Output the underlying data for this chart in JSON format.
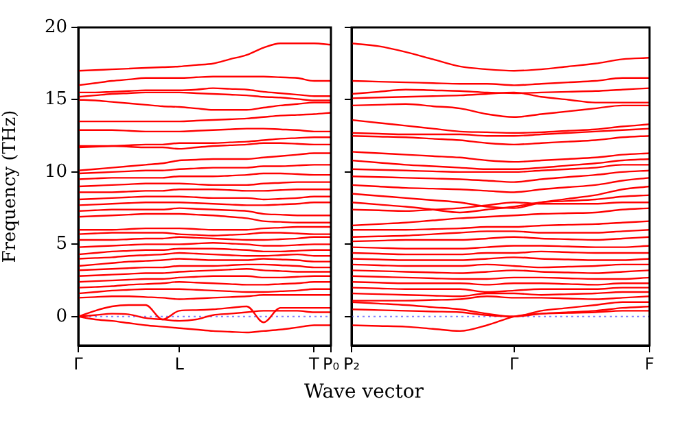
{
  "chart_data": [
    {
      "type": "line",
      "ylabel": "Frequency (THz)",
      "xlabel": "Wave vector",
      "marker": "none",
      "ylim": [
        -2,
        20
      ],
      "yticks": [
        0,
        5,
        10,
        15,
        20
      ],
      "categories": [
        "Γ",
        null,
        null,
        null,
        null,
        null,
        "L",
        null,
        null,
        null,
        null,
        null,
        null,
        null,
        "T",
        "P₀"
      ],
      "ref_lines": [
        {
          "axis": "y",
          "value": 0,
          "color": "#8080ff",
          "line_style": "dotted"
        }
      ],
      "series": [
        {
          "color": "#ff0000",
          "values": [
            0,
            -0.2,
            -0.3,
            -0.45,
            -0.6,
            -0.7,
            -0.8,
            -0.9,
            -1.0,
            -1.05,
            -1.1,
            -1.0,
            -0.9,
            -0.75,
            -0.6,
            -0.6
          ]
        },
        {
          "color": "#ff0000",
          "values": [
            0,
            0.1,
            0.2,
            0.15,
            -0.1,
            -0.2,
            -0.3,
            -0.2,
            0.1,
            0.2,
            0.3,
            0.4,
            0.4,
            0.4,
            0.3,
            0.3
          ]
        },
        {
          "color": "#ff0000",
          "values": [
            0,
            0.4,
            0.7,
            0.8,
            0.8,
            -0.2,
            0.4,
            0.45,
            0.5,
            0.6,
            0.7,
            -0.4,
            0.6,
            0.6,
            0.6,
            0.6
          ]
        },
        {
          "color": "#ff0000",
          "values": [
            1.3,
            1.35,
            1.4,
            1.4,
            1.35,
            1.3,
            1.2,
            1.25,
            1.3,
            1.35,
            1.4,
            1.5,
            1.5,
            1.5,
            1.5,
            1.5
          ]
        },
        {
          "color": "#ff0000",
          "values": [
            1.6,
            1.7,
            1.8,
            1.85,
            1.9,
            1.9,
            1.9,
            1.85,
            1.8,
            1.75,
            1.7,
            1.7,
            1.75,
            1.8,
            1.9,
            1.9
          ]
        },
        {
          "color": "#ff0000",
          "values": [
            2.0,
            2.05,
            2.1,
            2.2,
            2.25,
            2.3,
            2.4,
            2.35,
            2.3,
            2.25,
            2.2,
            2.2,
            2.25,
            2.3,
            2.4,
            2.4
          ]
        },
        {
          "color": "#ff0000",
          "values": [
            2.4,
            2.45,
            2.5,
            2.55,
            2.6,
            2.6,
            2.7,
            2.75,
            2.8,
            2.8,
            2.8,
            2.7,
            2.7,
            2.75,
            2.8,
            2.8
          ]
        },
        {
          "color": "#ff0000",
          "values": [
            2.8,
            2.85,
            2.9,
            2.95,
            3.0,
            3.0,
            3.1,
            3.15,
            3.2,
            3.25,
            3.3,
            3.2,
            3.15,
            3.1,
            3.1,
            3.1
          ]
        },
        {
          "color": "#ff0000",
          "values": [
            3.2,
            3.25,
            3.3,
            3.35,
            3.4,
            3.4,
            3.5,
            3.5,
            3.5,
            3.55,
            3.6,
            3.6,
            3.55,
            3.5,
            3.4,
            3.4
          ]
        },
        {
          "color": "#ff0000",
          "values": [
            3.5,
            3.6,
            3.7,
            3.8,
            3.85,
            3.9,
            4.0,
            3.95,
            3.9,
            3.9,
            3.9,
            4.0,
            3.95,
            3.9,
            3.8,
            3.8
          ]
        },
        {
          "color": "#ff0000",
          "values": [
            4.0,
            4.05,
            4.1,
            4.2,
            4.25,
            4.3,
            4.4,
            4.35,
            4.3,
            4.25,
            4.2,
            4.2,
            4.25,
            4.3,
            4.2,
            4.2
          ]
        },
        {
          "color": "#ff0000",
          "values": [
            4.3,
            4.4,
            4.5,
            4.55,
            4.6,
            4.6,
            4.7,
            4.7,
            4.7,
            4.65,
            4.6,
            4.5,
            4.5,
            4.55,
            4.6,
            4.6
          ]
        },
        {
          "color": "#ff0000",
          "values": [
            4.8,
            4.85,
            4.9,
            4.95,
            5.0,
            5.0,
            5.0,
            5.05,
            5.1,
            5.05,
            5.0,
            4.9,
            4.9,
            4.95,
            5.0,
            5.0
          ]
        },
        {
          "color": "#ff0000",
          "values": [
            5.3,
            5.3,
            5.3,
            5.35,
            5.4,
            5.4,
            5.5,
            5.45,
            5.4,
            5.35,
            5.3,
            5.3,
            5.35,
            5.4,
            5.5,
            5.5
          ]
        },
        {
          "color": "#ff0000",
          "values": [
            5.7,
            5.75,
            5.8,
            5.8,
            5.8,
            5.8,
            5.7,
            5.65,
            5.6,
            5.65,
            5.7,
            5.8,
            5.8,
            5.75,
            5.7,
            5.7
          ]
        },
        {
          "color": "#ff0000",
          "values": [
            6.0,
            6.0,
            6.0,
            6.05,
            6.1,
            6.1,
            6.1,
            6.05,
            6.0,
            6.0,
            6.0,
            6.1,
            6.15,
            6.2,
            6.2,
            6.2
          ]
        },
        {
          "color": "#ff0000",
          "values": [
            6.9,
            6.95,
            7.0,
            7.05,
            7.1,
            7.1,
            7.1,
            7.05,
            7.0,
            6.9,
            6.8,
            6.6,
            6.55,
            6.5,
            6.5,
            6.5
          ]
        },
        {
          "color": "#ff0000",
          "values": [
            7.3,
            7.35,
            7.4,
            7.4,
            7.4,
            7.4,
            7.5,
            7.45,
            7.4,
            7.35,
            7.3,
            7.1,
            7.05,
            7.0,
            7.0,
            7.0
          ]
        },
        {
          "color": "#ff0000",
          "values": [
            7.7,
            7.75,
            7.8,
            7.85,
            7.9,
            7.9,
            7.9,
            7.85,
            7.8,
            7.75,
            7.7,
            7.7,
            7.75,
            7.8,
            7.9,
            7.9
          ]
        },
        {
          "color": "#ff0000",
          "values": [
            8.1,
            8.15,
            8.2,
            8.25,
            8.3,
            8.3,
            8.3,
            8.25,
            8.2,
            8.2,
            8.2,
            8.1,
            8.15,
            8.2,
            8.3,
            8.3
          ]
        },
        {
          "color": "#ff0000",
          "values": [
            8.6,
            8.6,
            8.6,
            8.65,
            8.7,
            8.7,
            8.8,
            8.8,
            8.8,
            8.75,
            8.7,
            8.7,
            8.75,
            8.8,
            8.8,
            8.8
          ]
        },
        {
          "color": "#ff0000",
          "values": [
            9.0,
            9.05,
            9.1,
            9.15,
            9.2,
            9.2,
            9.2,
            9.15,
            9.1,
            9.1,
            9.1,
            9.2,
            9.25,
            9.3,
            9.3,
            9.3
          ]
        },
        {
          "color": "#ff0000",
          "values": [
            9.5,
            9.55,
            9.6,
            9.6,
            9.6,
            9.6,
            9.7,
            9.7,
            9.7,
            9.75,
            9.8,
            9.9,
            9.9,
            9.85,
            9.8,
            9.8
          ]
        },
        {
          "color": "#ff0000",
          "values": [
            9.9,
            9.95,
            10.0,
            10.05,
            10.1,
            10.1,
            10.2,
            10.25,
            10.3,
            10.3,
            10.3,
            10.4,
            10.4,
            10.45,
            10.5,
            10.5
          ]
        },
        {
          "color": "#ff0000",
          "values": [
            10.1,
            10.2,
            10.3,
            10.4,
            10.5,
            10.6,
            10.8,
            10.85,
            10.9,
            10.9,
            10.9,
            11.0,
            11.1,
            11.2,
            11.3,
            11.3
          ]
        },
        {
          "color": "#ff0000",
          "values": [
            11.7,
            11.75,
            11.8,
            11.85,
            11.9,
            11.9,
            12.0,
            12.0,
            12.0,
            12.05,
            12.1,
            12.2,
            12.3,
            12.35,
            12.4,
            12.4
          ]
        },
        {
          "color": "#ff0000",
          "values": [
            11.8,
            11.8,
            11.8,
            11.75,
            11.7,
            11.7,
            11.6,
            11.7,
            11.8,
            11.85,
            11.9,
            12.0,
            12.0,
            11.95,
            11.9,
            11.9
          ]
        },
        {
          "color": "#ff0000",
          "values": [
            12.9,
            12.9,
            12.9,
            12.85,
            12.8,
            12.8,
            12.8,
            12.85,
            12.9,
            12.95,
            13.0,
            13.0,
            12.95,
            12.9,
            12.8,
            12.8
          ]
        },
        {
          "color": "#ff0000",
          "values": [
            13.5,
            13.5,
            13.5,
            13.5,
            13.5,
            13.5,
            13.5,
            13.55,
            13.6,
            13.65,
            13.7,
            13.8,
            13.9,
            13.95,
            14.0,
            14.1
          ]
        },
        {
          "color": "#ff0000",
          "values": [
            15.0,
            14.95,
            14.85,
            14.75,
            14.65,
            14.55,
            14.5,
            14.4,
            14.3,
            14.3,
            14.3,
            14.45,
            14.6,
            14.7,
            14.8,
            14.8
          ]
        },
        {
          "color": "#ff0000",
          "values": [
            15.2,
            15.3,
            15.4,
            15.45,
            15.5,
            15.5,
            15.5,
            15.45,
            15.4,
            15.35,
            15.3,
            15.2,
            15.15,
            15.05,
            14.95,
            14.95
          ]
        },
        {
          "color": "#ff0000",
          "values": [
            15.5,
            15.5,
            15.55,
            15.6,
            15.65,
            15.65,
            15.65,
            15.7,
            15.8,
            15.75,
            15.7,
            15.55,
            15.45,
            15.35,
            15.25,
            15.25
          ]
        },
        {
          "color": "#ff0000",
          "values": [
            16.0,
            16.15,
            16.3,
            16.4,
            16.5,
            16.5,
            16.5,
            16.55,
            16.6,
            16.6,
            16.6,
            16.6,
            16.55,
            16.5,
            16.3,
            16.3
          ]
        },
        {
          "color": "#ff0000",
          "values": [
            17.0,
            17.05,
            17.1,
            17.15,
            17.2,
            17.25,
            17.3,
            17.4,
            17.5,
            17.8,
            18.1,
            18.6,
            18.9,
            18.9,
            18.9,
            18.8
          ]
        }
      ]
    },
    {
      "type": "line",
      "marker": "none",
      "tick_labels": "x",
      "ylim": [
        -2,
        20
      ],
      "yticks": [
        0,
        5,
        10,
        15,
        20
      ],
      "categories": [
        "P₂",
        null,
        null,
        null,
        null,
        null,
        "Γ",
        null,
        null,
        null,
        null,
        "F"
      ],
      "ref_lines": [
        {
          "axis": "y",
          "value": 0,
          "color": "#8080ff",
          "line_style": "dotted"
        }
      ],
      "series": [
        {
          "color": "#ff0000",
          "values": [
            -0.6,
            -0.65,
            -0.7,
            -0.85,
            -1.0,
            -0.6,
            0,
            0.2,
            0.25,
            0.3,
            0.4,
            0.4
          ]
        },
        {
          "color": "#ff0000",
          "values": [
            0.5,
            0.45,
            0.4,
            0.35,
            0.3,
            0.1,
            0,
            0.2,
            0.3,
            0.4,
            0.6,
            0.7
          ]
        },
        {
          "color": "#ff0000",
          "values": [
            1.0,
            0.9,
            0.8,
            0.65,
            0.5,
            0.2,
            0,
            0.4,
            0.6,
            0.8,
            1.0,
            1.0
          ]
        },
        {
          "color": "#ff0000",
          "values": [
            1.1,
            1.1,
            1.1,
            1.15,
            1.2,
            1.4,
            1.3,
            1.3,
            1.25,
            1.2,
            1.3,
            1.4
          ]
        },
        {
          "color": "#ff0000",
          "values": [
            1.6,
            1.55,
            1.5,
            1.45,
            1.4,
            1.6,
            1.6,
            1.5,
            1.55,
            1.6,
            1.7,
            1.7
          ]
        },
        {
          "color": "#ff0000",
          "values": [
            2.0,
            1.95,
            1.9,
            1.9,
            1.9,
            1.7,
            1.8,
            1.9,
            1.9,
            1.9,
            2.0,
            2.0
          ]
        },
        {
          "color": "#ff0000",
          "values": [
            2.4,
            2.35,
            2.3,
            2.3,
            2.3,
            2.2,
            2.3,
            2.3,
            2.25,
            2.2,
            2.3,
            2.3
          ]
        },
        {
          "color": "#ff0000",
          "values": [
            2.8,
            2.75,
            2.7,
            2.65,
            2.6,
            2.6,
            2.7,
            2.7,
            2.65,
            2.6,
            2.6,
            2.7
          ]
        },
        {
          "color": "#ff0000",
          "values": [
            3.2,
            3.15,
            3.1,
            3.05,
            3.0,
            3.1,
            3.2,
            3.1,
            3.05,
            3.0,
            3.1,
            3.2
          ]
        },
        {
          "color": "#ff0000",
          "values": [
            3.6,
            3.55,
            3.5,
            3.5,
            3.5,
            3.6,
            3.5,
            3.4,
            3.45,
            3.5,
            3.6,
            3.6
          ]
        },
        {
          "color": "#ff0000",
          "values": [
            4.0,
            3.95,
            3.9,
            3.9,
            3.9,
            4.0,
            4.1,
            4.0,
            3.95,
            3.9,
            3.9,
            4.0
          ]
        },
        {
          "color": "#ff0000",
          "values": [
            4.4,
            4.35,
            4.3,
            4.3,
            4.3,
            4.4,
            4.4,
            4.5,
            4.45,
            4.4,
            4.4,
            4.4
          ]
        },
        {
          "color": "#ff0000",
          "values": [
            4.8,
            4.75,
            4.7,
            4.7,
            4.7,
            4.8,
            4.9,
            4.9,
            4.85,
            4.8,
            4.8,
            4.9
          ]
        },
        {
          "color": "#ff0000",
          "values": [
            5.2,
            5.25,
            5.3,
            5.3,
            5.3,
            5.4,
            5.5,
            5.4,
            5.35,
            5.3,
            5.4,
            5.5
          ]
        },
        {
          "color": "#ff0000",
          "values": [
            5.5,
            5.55,
            5.6,
            5.7,
            5.8,
            5.9,
            5.9,
            5.8,
            5.8,
            5.8,
            5.9,
            6.0
          ]
        },
        {
          "color": "#ff0000",
          "values": [
            6.0,
            6.0,
            6.0,
            6.05,
            6.1,
            6.2,
            6.2,
            6.3,
            6.35,
            6.4,
            6.5,
            6.6
          ]
        },
        {
          "color": "#ff0000",
          "values": [
            6.3,
            6.4,
            6.5,
            6.65,
            6.8,
            6.9,
            7.0,
            7.1,
            7.15,
            7.2,
            7.4,
            7.5
          ]
        },
        {
          "color": "#ff0000",
          "values": [
            7.4,
            7.35,
            7.3,
            7.4,
            7.5,
            7.7,
            7.9,
            7.8,
            7.8,
            7.8,
            7.9,
            7.9
          ]
        },
        {
          "color": "#ff0000",
          "values": [
            7.9,
            7.75,
            7.6,
            7.4,
            7.2,
            7.4,
            7.6,
            7.9,
            8.0,
            8.1,
            8.3,
            8.4
          ]
        },
        {
          "color": "#ff0000",
          "values": [
            8.5,
            8.35,
            8.2,
            8.05,
            7.9,
            7.6,
            7.5,
            7.9,
            8.15,
            8.4,
            8.8,
            9.0
          ]
        },
        {
          "color": "#ff0000",
          "values": [
            9.1,
            9.0,
            8.9,
            8.85,
            8.8,
            8.7,
            8.6,
            8.8,
            8.95,
            9.1,
            9.4,
            9.6
          ]
        },
        {
          "color": "#ff0000",
          "values": [
            9.7,
            9.65,
            9.6,
            9.55,
            9.5,
            9.4,
            9.3,
            9.5,
            9.65,
            9.8,
            10.0,
            10.1
          ]
        },
        {
          "color": "#ff0000",
          "values": [
            10.2,
            10.15,
            10.1,
            10.05,
            10.0,
            10.0,
            10.0,
            10.1,
            10.2,
            10.3,
            10.5,
            10.5
          ]
        },
        {
          "color": "#ff0000",
          "values": [
            10.8,
            10.65,
            10.5,
            10.4,
            10.3,
            10.2,
            10.2,
            10.3,
            10.45,
            10.6,
            10.8,
            10.9
          ]
        },
        {
          "color": "#ff0000",
          "values": [
            11.4,
            11.3,
            11.2,
            11.1,
            11.0,
            10.8,
            10.7,
            10.8,
            10.9,
            11.0,
            11.2,
            11.3
          ]
        },
        {
          "color": "#ff0000",
          "values": [
            12.5,
            12.45,
            12.4,
            12.3,
            12.2,
            12.0,
            11.9,
            12.0,
            12.1,
            12.2,
            12.4,
            12.5
          ]
        },
        {
          "color": "#ff0000",
          "values": [
            12.7,
            12.65,
            12.6,
            12.6,
            12.6,
            12.5,
            12.5,
            12.6,
            12.7,
            12.8,
            12.9,
            13.0
          ]
        },
        {
          "color": "#ff0000",
          "values": [
            13.6,
            13.4,
            13.2,
            13.0,
            12.8,
            12.75,
            12.7,
            12.75,
            12.85,
            12.95,
            13.15,
            13.3
          ]
        },
        {
          "color": "#ff0000",
          "values": [
            14.6,
            14.65,
            14.7,
            14.55,
            14.4,
            14.0,
            13.8,
            14.0,
            14.2,
            14.4,
            14.6,
            14.6
          ]
        },
        {
          "color": "#ff0000",
          "values": [
            15.1,
            15.15,
            15.2,
            15.25,
            15.3,
            15.4,
            15.5,
            15.2,
            15.0,
            14.8,
            14.8,
            14.8
          ]
        },
        {
          "color": "#ff0000",
          "values": [
            15.4,
            15.55,
            15.7,
            15.65,
            15.6,
            15.5,
            15.45,
            15.5,
            15.55,
            15.6,
            15.7,
            15.8
          ]
        },
        {
          "color": "#ff0000",
          "values": [
            16.3,
            16.25,
            16.2,
            16.15,
            16.1,
            16.1,
            16.0,
            16.1,
            16.2,
            16.3,
            16.5,
            16.5
          ]
        },
        {
          "color": "#ff0000",
          "values": [
            18.9,
            18.7,
            18.3,
            17.8,
            17.3,
            17.1,
            17.0,
            17.1,
            17.3,
            17.5,
            17.8,
            17.9
          ]
        }
      ]
    }
  ]
}
